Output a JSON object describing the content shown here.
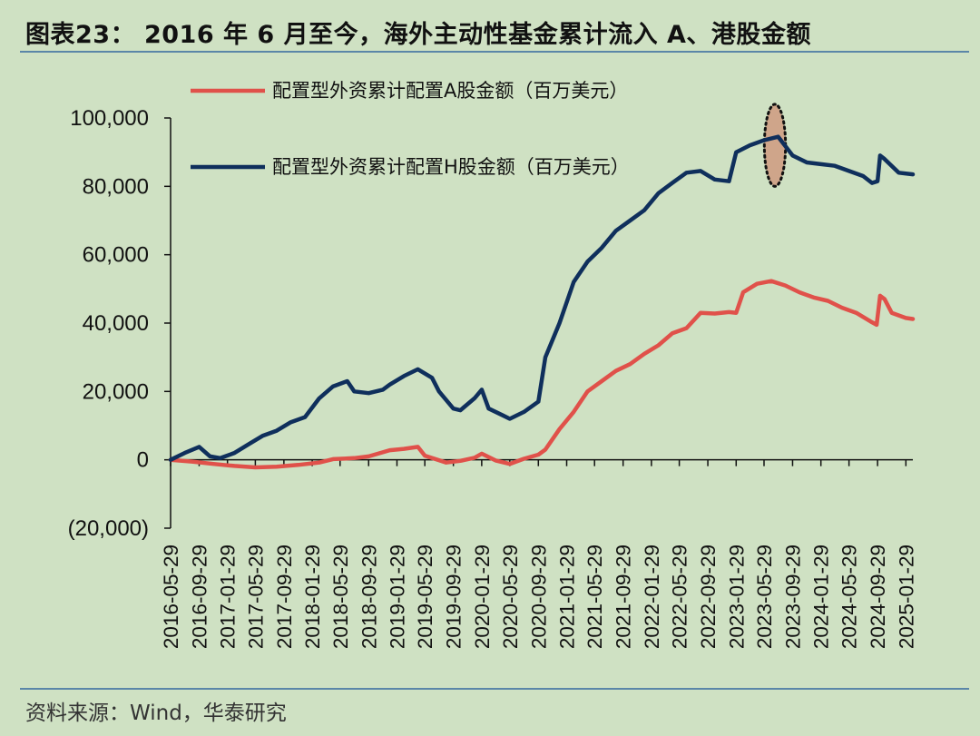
{
  "title": "图表23： 2016 年 6 月至今，海外主动性基金累计流入 A、港股金额",
  "source": "资料来源：Wind，华泰研究",
  "chart_data": {
    "type": "line",
    "ylim": [
      -20000,
      100000
    ],
    "yticks": [
      -20000,
      0,
      20000,
      40000,
      60000,
      80000,
      100000
    ],
    "ytick_labels": [
      "(20,000)",
      "0",
      "20,000",
      "40,000",
      "60,000",
      "80,000",
      "100,000"
    ],
    "xtick_labels": [
      "2016-05-29",
      "2016-09-29",
      "2017-01-29",
      "2017-05-29",
      "2017-09-29",
      "2018-01-29",
      "2018-05-29",
      "2018-09-29",
      "2019-01-29",
      "2019-05-29",
      "2019-09-29",
      "2020-01-29",
      "2020-05-29",
      "2020-09-29",
      "2021-01-29",
      "2021-05-29",
      "2021-09-29",
      "2022-01-29",
      "2022-05-29",
      "2022-09-29",
      "2023-01-29",
      "2023-05-29",
      "2023-09-29",
      "2024-01-29",
      "2024-05-29",
      "2024-09-29",
      "2025-01-29"
    ],
    "x_start": "2016-05-29",
    "x_end": "2025-02-28",
    "legend_position": "top-left",
    "highlight": {
      "x_center": "2023-07-15",
      "y_center": 92000,
      "x_halfwidth_months": 1.5,
      "y_halfwidth": 12000,
      "fill": "#cfa58a",
      "border": "#111111"
    },
    "series": [
      {
        "name": "配置型外资累计配置A股金额（百万美元）",
        "color": "#e0514a",
        "points": [
          [
            "2016-05-29",
            0
          ],
          [
            "2016-08-29",
            -500
          ],
          [
            "2016-11-29",
            -1200
          ],
          [
            "2017-02-28",
            -1800
          ],
          [
            "2017-05-29",
            -2200
          ],
          [
            "2017-08-29",
            -2000
          ],
          [
            "2017-11-29",
            -1500
          ],
          [
            "2018-02-28",
            -800
          ],
          [
            "2018-04-29",
            200
          ],
          [
            "2018-07-29",
            500
          ],
          [
            "2018-09-29",
            1000
          ],
          [
            "2018-12-29",
            2800
          ],
          [
            "2019-02-28",
            3200
          ],
          [
            "2019-04-29",
            3800
          ],
          [
            "2019-05-29",
            1200
          ],
          [
            "2019-08-29",
            -800
          ],
          [
            "2019-10-29",
            -300
          ],
          [
            "2019-12-29",
            600
          ],
          [
            "2020-01-29",
            1800
          ],
          [
            "2020-03-29",
            -200
          ],
          [
            "2020-05-29",
            -1200
          ],
          [
            "2020-07-29",
            300
          ],
          [
            "2020-09-29",
            1500
          ],
          [
            "2020-10-29",
            3000
          ],
          [
            "2020-12-29",
            9000
          ],
          [
            "2021-02-28",
            14000
          ],
          [
            "2021-04-29",
            20000
          ],
          [
            "2021-06-29",
            23000
          ],
          [
            "2021-08-29",
            26000
          ],
          [
            "2021-10-29",
            28000
          ],
          [
            "2021-12-29",
            31000
          ],
          [
            "2022-02-28",
            33500
          ],
          [
            "2022-04-29",
            37000
          ],
          [
            "2022-06-29",
            38500
          ],
          [
            "2022-08-29",
            43000
          ],
          [
            "2022-10-29",
            42800
          ],
          [
            "2022-12-29",
            43200
          ],
          [
            "2023-01-29",
            43000
          ],
          [
            "2023-02-28",
            49000
          ],
          [
            "2023-04-29",
            51500
          ],
          [
            "2023-06-29",
            52300
          ],
          [
            "2023-08-29",
            51000
          ],
          [
            "2023-10-29",
            49000
          ],
          [
            "2023-12-29",
            47500
          ],
          [
            "2024-02-28",
            46500
          ],
          [
            "2024-04-29",
            44500
          ],
          [
            "2024-06-29",
            43000
          ],
          [
            "2024-08-29",
            40500
          ],
          [
            "2024-09-25",
            39500
          ],
          [
            "2024-10-10",
            48000
          ],
          [
            "2024-10-29",
            47000
          ],
          [
            "2024-11-29",
            43000
          ],
          [
            "2025-01-29",
            41500
          ],
          [
            "2025-02-28",
            41200
          ]
        ]
      },
      {
        "name": "配置型外资累计配置H股金额（百万美元）",
        "color": "#0f2f5c",
        "points": [
          [
            "2016-05-29",
            0
          ],
          [
            "2016-07-29",
            2000
          ],
          [
            "2016-09-29",
            3800
          ],
          [
            "2016-11-15",
            1000
          ],
          [
            "2016-12-29",
            500
          ],
          [
            "2017-02-28",
            2000
          ],
          [
            "2017-04-29",
            4500
          ],
          [
            "2017-06-29",
            7000
          ],
          [
            "2017-08-29",
            8500
          ],
          [
            "2017-10-29",
            11000
          ],
          [
            "2017-12-29",
            12500
          ],
          [
            "2018-02-28",
            18000
          ],
          [
            "2018-04-29",
            21500
          ],
          [
            "2018-06-29",
            23000
          ],
          [
            "2018-07-29",
            20000
          ],
          [
            "2018-09-29",
            19500
          ],
          [
            "2018-11-29",
            20500
          ],
          [
            "2018-12-29",
            22000
          ],
          [
            "2019-02-28",
            24500
          ],
          [
            "2019-04-29",
            26500
          ],
          [
            "2019-06-29",
            24000
          ],
          [
            "2019-07-29",
            20000
          ],
          [
            "2019-09-29",
            15000
          ],
          [
            "2019-10-29",
            14500
          ],
          [
            "2019-12-29",
            18000
          ],
          [
            "2020-01-29",
            20500
          ],
          [
            "2020-02-28",
            15000
          ],
          [
            "2020-04-29",
            13000
          ],
          [
            "2020-05-29",
            12000
          ],
          [
            "2020-07-29",
            14000
          ],
          [
            "2020-09-29",
            17000
          ],
          [
            "2020-10-29",
            30000
          ],
          [
            "2020-12-29",
            40000
          ],
          [
            "2021-02-28",
            52000
          ],
          [
            "2021-04-29",
            58000
          ],
          [
            "2021-06-29",
            62000
          ],
          [
            "2021-08-29",
            67000
          ],
          [
            "2021-10-29",
            70000
          ],
          [
            "2021-12-29",
            73000
          ],
          [
            "2022-02-28",
            78000
          ],
          [
            "2022-04-29",
            81000
          ],
          [
            "2022-06-29",
            84000
          ],
          [
            "2022-08-29",
            84500
          ],
          [
            "2022-10-29",
            82000
          ],
          [
            "2022-12-29",
            81500
          ],
          [
            "2023-01-29",
            90000
          ],
          [
            "2023-03-29",
            92000
          ],
          [
            "2023-05-29",
            93500
          ],
          [
            "2023-07-29",
            94500
          ],
          [
            "2023-09-29",
            89000
          ],
          [
            "2023-11-29",
            87000
          ],
          [
            "2024-01-29",
            86500
          ],
          [
            "2024-03-29",
            86000
          ],
          [
            "2024-05-29",
            84500
          ],
          [
            "2024-07-29",
            83000
          ],
          [
            "2024-09-05",
            81000
          ],
          [
            "2024-09-29",
            81500
          ],
          [
            "2024-10-10",
            89000
          ],
          [
            "2024-10-29",
            88000
          ],
          [
            "2024-12-29",
            84000
          ],
          [
            "2025-02-28",
            83500
          ]
        ]
      }
    ]
  }
}
